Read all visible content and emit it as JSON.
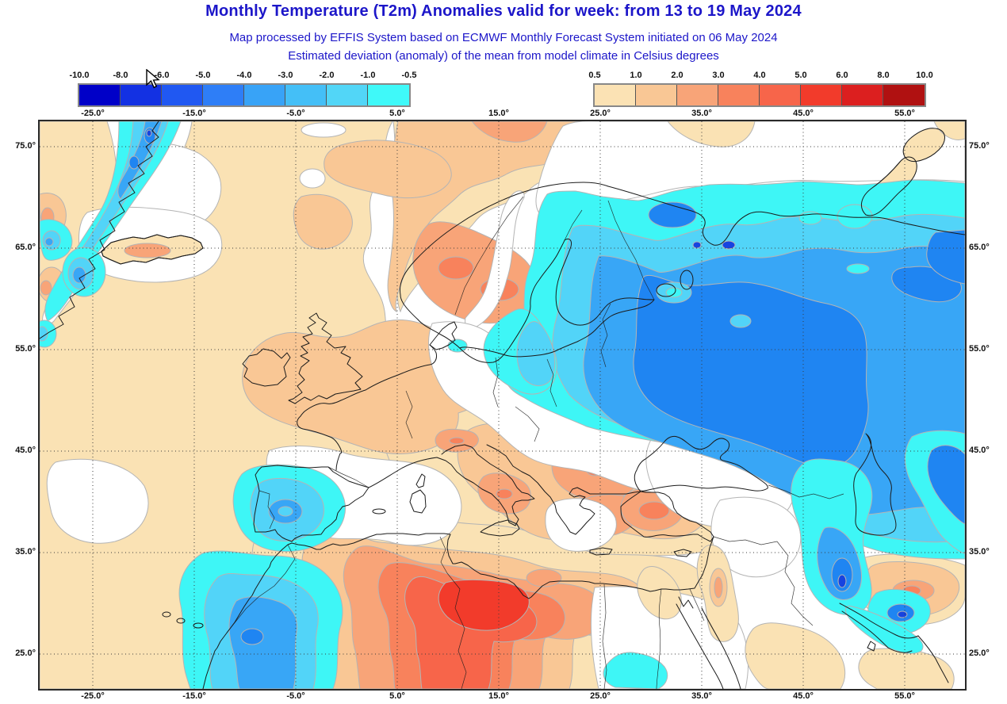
{
  "header": {
    "title": "Monthly Temperature (T2m) Anomalies valid for week: from 13 to 19 May 2024",
    "subtitle_line1": "Map processed by EFFIS System based on ECMWF Monthly Forecast System initiated on 06 May 2024",
    "subtitle_line2": "Estimated deviation (anomaly) of the mean from model climate in Celsius degrees",
    "text_color": "#1c16c9"
  },
  "legend": {
    "negative_scale": {
      "tick_labels": [
        "-10.0",
        "-8.0",
        "-6.0",
        "-5.0",
        "-4.0",
        "-3.0",
        "-2.0",
        "-1.0",
        "-0.5"
      ],
      "segment_colors": [
        "#0000C8",
        "#1331E3",
        "#2058F2",
        "#2E7EF7",
        "#38A3F7",
        "#44BFF7",
        "#52D6F7",
        "#3FF9F9"
      ]
    },
    "positive_scale": {
      "tick_labels": [
        "0.5",
        "1.0",
        "2.0",
        "3.0",
        "4.0",
        "5.0",
        "6.0",
        "8.0",
        "10.0"
      ],
      "segment_colors": [
        "#FBE2B4",
        "#F9C795",
        "#F8A478",
        "#F8825C",
        "#F7654A",
        "#F23B2B",
        "#DC1F1F",
        "#B01111"
      ]
    },
    "units": "Celsius degrees"
  },
  "map_axes": {
    "longitude_labels": [
      "-25.0°",
      "-15.0°",
      "-5.0°",
      "5.0°",
      "15.0°",
      "25.0°",
      "35.0°",
      "45.0°",
      "55.0°"
    ],
    "latitude_labels": [
      "75.0°",
      "65.0°",
      "55.0°",
      "45.0°",
      "35.0°",
      "25.0°"
    ]
  },
  "palette": {
    "tan": "#FAE2B4",
    "orange": "#F9C795",
    "salmon": "#F8A478",
    "redorange": "#F8825C",
    "red": "#F7654A",
    "brightred": "#F23B2B",
    "cyan": "#3EF6F6",
    "lightblue": "#52D4F8",
    "midblue": "#38A6F6",
    "strongblue": "#1F85F2",
    "deepblue": "#1743E0",
    "contour": "#B4B4B4",
    "coast": "#1B1B1B"
  }
}
